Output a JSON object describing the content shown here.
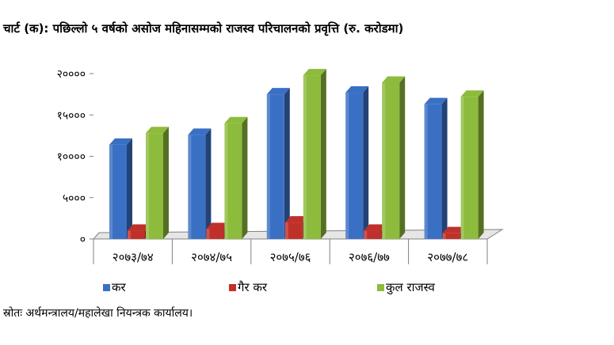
{
  "chart_data": {
    "type": "bar",
    "title": "चार्ट (क): पछिल्लो ५ वर्षको असोज महिनासम्मको राजस्व परिचालनको प्रवृत्ति (रु. करोडमा)",
    "categories": [
      "२०७३/७४",
      "२०७४/७५",
      "२०७५/७६",
      "२०७६/७७",
      "२०७७/७८"
    ],
    "series": [
      {
        "name": "कर",
        "color": "#3A70C4",
        "values": [
          11400,
          12600,
          17500,
          17700,
          16300
        ]
      },
      {
        "name": "गैर कर",
        "color": "#C0302A",
        "values": [
          1000,
          1200,
          2000,
          1000,
          700
        ]
      },
      {
        "name": "कुल राजस्व",
        "color": "#8DBB3C",
        "values": [
          12800,
          14000,
          19800,
          18900,
          17200
        ]
      }
    ],
    "yticks": [
      "०",
      "५०००",
      "१००००",
      "१५०००",
      "२००००"
    ],
    "ylim": [
      0,
      20000
    ],
    "grid": false,
    "legend_position": "bottom"
  },
  "source_note": "स्रोतः अर्थमन्त्रालय/महालेखा नियन्त्रक कार्यालय।"
}
